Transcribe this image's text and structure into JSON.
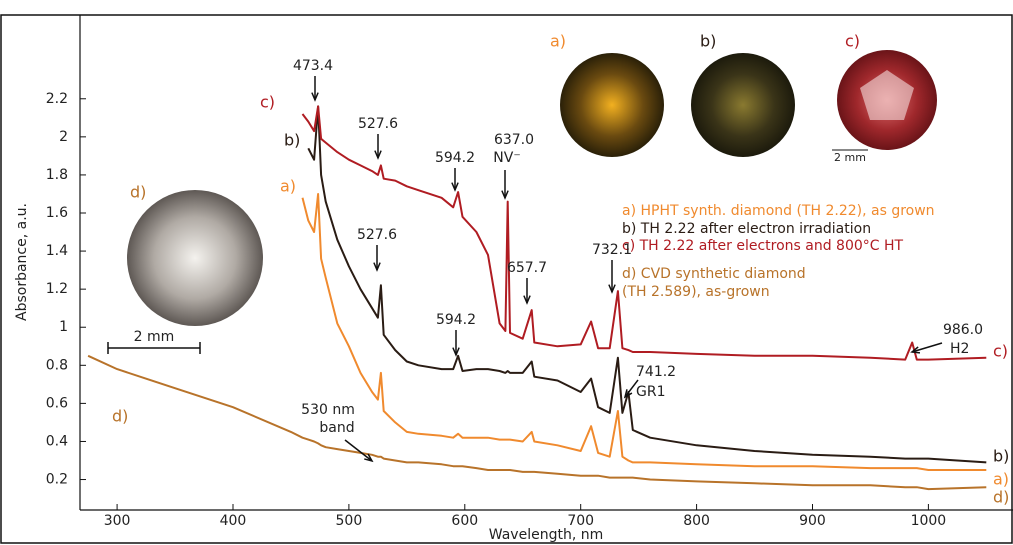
{
  "chart_data": {
    "type": "line",
    "x_label": "Wavelength, nm",
    "y_label": "Absorbance, a.u.",
    "xlim": [
      268,
      1073
    ],
    "ylim": [
      0.04,
      2.64
    ],
    "xticks": [
      300,
      400,
      500,
      600,
      700,
      800,
      900,
      1000
    ],
    "yticks": [
      0.2,
      0.4,
      0.6,
      0.8,
      1,
      1.2,
      1.4,
      1.6,
      1.8,
      2,
      2.2
    ],
    "x": [
      275,
      300,
      350,
      400,
      450,
      460,
      465,
      470,
      473.4,
      476,
      480,
      490,
      500,
      510,
      520,
      525,
      527.6,
      530,
      540,
      550,
      560,
      580,
      590,
      594.2,
      598,
      610,
      620,
      630,
      635,
      637,
      639,
      650,
      657.7,
      660,
      680,
      700,
      709,
      715,
      725,
      732.1,
      736,
      741.2,
      745,
      760,
      800,
      850,
      900,
      950,
      980,
      986,
      990,
      1000,
      1050
    ],
    "series": [
      {
        "name": "a)",
        "color": "#f08a2e",
        "values": [
          null,
          null,
          null,
          null,
          null,
          1.68,
          1.56,
          1.5,
          1.7,
          1.36,
          1.26,
          1.02,
          0.9,
          0.76,
          0.66,
          0.62,
          0.76,
          0.56,
          0.5,
          0.45,
          0.44,
          0.43,
          0.42,
          0.44,
          0.42,
          0.42,
          0.42,
          0.41,
          0.41,
          0.41,
          0.41,
          0.4,
          0.45,
          0.4,
          0.38,
          0.35,
          0.48,
          0.34,
          0.32,
          0.56,
          0.32,
          0.3,
          0.29,
          0.29,
          0.28,
          0.27,
          0.27,
          0.26,
          0.26,
          0.26,
          0.26,
          0.25,
          0.25
        ]
      },
      {
        "name": "b)",
        "color": "#2a1c14",
        "values": [
          null,
          null,
          null,
          null,
          null,
          null,
          1.94,
          1.88,
          2.16,
          1.8,
          1.66,
          1.46,
          1.32,
          1.2,
          1.1,
          1.05,
          1.22,
          0.96,
          0.88,
          0.82,
          0.8,
          0.78,
          0.78,
          0.85,
          0.77,
          0.78,
          0.78,
          0.77,
          0.76,
          0.77,
          0.76,
          0.76,
          0.82,
          0.74,
          0.72,
          0.66,
          0.73,
          0.58,
          0.55,
          0.84,
          0.55,
          0.66,
          0.46,
          0.42,
          0.38,
          0.35,
          0.33,
          0.32,
          0.31,
          0.31,
          0.31,
          0.31,
          0.29
        ]
      },
      {
        "name": "c)",
        "color": "#b01c22",
        "values": [
          null,
          null,
          null,
          null,
          null,
          2.12,
          2.08,
          2.03,
          2.16,
          1.99,
          1.97,
          1.92,
          1.88,
          1.85,
          1.82,
          1.8,
          1.85,
          1.78,
          1.77,
          1.74,
          1.72,
          1.68,
          1.63,
          1.71,
          1.58,
          1.5,
          1.38,
          1.02,
          0.98,
          1.66,
          0.97,
          0.94,
          1.09,
          0.92,
          0.9,
          0.91,
          1.03,
          0.89,
          0.89,
          1.19,
          0.89,
          0.88,
          0.87,
          0.87,
          0.86,
          0.85,
          0.85,
          0.84,
          0.83,
          0.92,
          0.83,
          0.83,
          0.84
        ]
      },
      {
        "name": "d)",
        "color": "#b8732a",
        "values": [
          0.85,
          0.78,
          0.68,
          0.58,
          0.45,
          0.42,
          0.41,
          0.4,
          0.39,
          0.38,
          0.37,
          0.36,
          0.35,
          0.34,
          0.33,
          0.32,
          0.32,
          0.31,
          0.3,
          0.29,
          0.29,
          0.28,
          0.27,
          0.27,
          0.27,
          0.26,
          0.25,
          0.25,
          0.25,
          0.25,
          0.25,
          0.24,
          0.24,
          0.24,
          0.23,
          0.22,
          0.22,
          0.22,
          0.21,
          0.21,
          0.21,
          0.21,
          0.21,
          0.2,
          0.19,
          0.18,
          0.17,
          0.17,
          0.16,
          0.16,
          0.16,
          0.15,
          0.16
        ]
      }
    ],
    "legend": [
      "a) HPHT synth. diamond (TH 2.22), as grown",
      "b) TH 2.22 after electron irradiation",
      "c) TH 2.22 after electrons and 800°C HT",
      "d) CVD synthetic diamond",
      "(TH 2.589), as-grown"
    ],
    "annotations": [
      "473.4",
      "527.6",
      "594.2",
      "637.0",
      "NV⁻",
      "527.6",
      "594.2",
      "657.7",
      "732.1",
      "741.2",
      "GR1",
      "986.0",
      "H2",
      "530 nm",
      "band"
    ],
    "scale_bars": [
      "2 mm",
      "2 mm"
    ]
  }
}
